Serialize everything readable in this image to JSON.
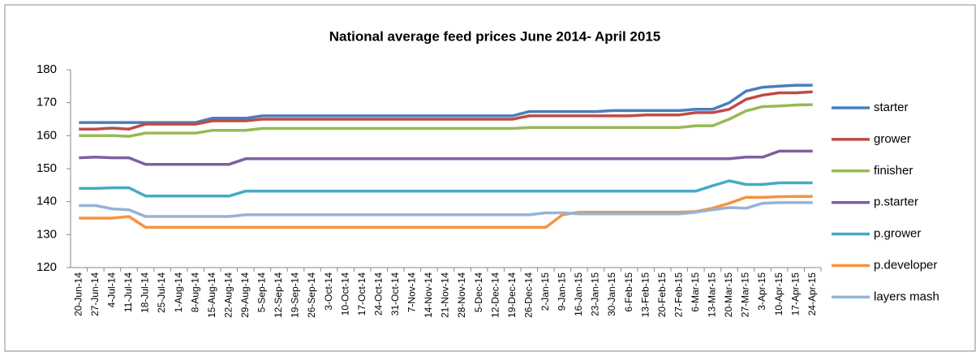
{
  "chart_data": {
    "type": "line",
    "title": "National average feed prices June 2014- April 2015",
    "categories": [
      "20-Jun-14",
      "27-Jun-14",
      "4-Jul-14",
      "11-Jul-14",
      "18-Jul-14",
      "25-Jul-14",
      "1-Aug-14",
      "8-Aug-14",
      "15-Aug-14",
      "22-Aug-14",
      "29-Aug-14",
      "5-Sep-14",
      "12-Sep-14",
      "19-Sep-14",
      "26-Sep-14",
      "3-Oct-14",
      "10-Oct-14",
      "17-Oct-14",
      "24-Oct-14",
      "31-Oct-14",
      "7-Nov-14",
      "14-Nov-14",
      "21-Nov-14",
      "28-Nov-14",
      "5-Dec-14",
      "12-Dec-14",
      "19-Dec-14",
      "26-Dec-14",
      "2-Jan-15",
      "9-Jan-15",
      "16-Jan-15",
      "23-Jan-15",
      "30-Jan-15",
      "6-Feb-15",
      "13-Feb-15",
      "20-Feb-15",
      "27-Feb-15",
      "6-Mar-15",
      "13-Mar-15",
      "20-Mar-15",
      "27-Mar-15",
      "3-Apr-15",
      "10-Apr-15",
      "17-Apr-15",
      "24-Apr-15"
    ],
    "series": [
      {
        "name": "starter",
        "color": "#4a7ebb",
        "values": [
          164,
          164,
          164,
          164,
          164,
          164,
          164,
          164,
          165.3,
          165.3,
          165.3,
          166,
          166,
          166,
          166,
          166,
          166,
          166,
          166,
          166,
          166,
          166,
          166,
          166,
          166,
          166,
          166,
          167.3,
          167.3,
          167.3,
          167.3,
          167.3,
          167.6,
          167.6,
          167.6,
          167.6,
          167.6,
          168,
          168,
          170,
          173.5,
          174.7,
          175,
          175.3,
          175.3
        ]
      },
      {
        "name": "grower",
        "color": "#be4b48",
        "values": [
          162,
          162,
          162.3,
          162,
          163.5,
          163.5,
          163.5,
          163.5,
          164.5,
          164.5,
          164.5,
          165,
          165,
          165,
          165,
          165,
          165,
          165,
          165,
          165,
          165,
          165,
          165,
          165,
          165,
          165,
          165,
          166,
          166,
          166,
          166,
          166,
          166,
          166,
          166.3,
          166.3,
          166.3,
          167,
          167,
          168,
          171,
          172.3,
          173,
          173,
          173.3
        ]
      },
      {
        "name": "finisher",
        "color": "#98b954",
        "values": [
          160,
          160,
          160,
          159.8,
          160.8,
          160.8,
          160.8,
          160.8,
          161.6,
          161.6,
          161.6,
          162.2,
          162.2,
          162.2,
          162.2,
          162.2,
          162.2,
          162.2,
          162.2,
          162.2,
          162.2,
          162.2,
          162.2,
          162.2,
          162.2,
          162.2,
          162.2,
          162.5,
          162.5,
          162.5,
          162.5,
          162.5,
          162.5,
          162.5,
          162.5,
          162.5,
          162.5,
          163,
          163,
          165,
          167.5,
          168.8,
          169,
          169.3,
          169.4
        ]
      },
      {
        "name": "p.starter",
        "color": "#7d60a0",
        "values": [
          153.3,
          153.5,
          153.3,
          153.3,
          151.3,
          151.3,
          151.3,
          151.3,
          151.3,
          151.3,
          153,
          153,
          153,
          153,
          153,
          153,
          153,
          153,
          153,
          153,
          153,
          153,
          153,
          153,
          153,
          153,
          153,
          153,
          153,
          153,
          153,
          153,
          153,
          153,
          153,
          153,
          153,
          153,
          153,
          153,
          153.5,
          153.5,
          155.3,
          155.3,
          155.3
        ]
      },
      {
        "name": "p.grower",
        "color": "#46aac5",
        "values": [
          144,
          144,
          144.2,
          144.2,
          141.7,
          141.7,
          141.7,
          141.7,
          141.7,
          141.7,
          143.2,
          143.2,
          143.2,
          143.2,
          143.2,
          143.2,
          143.2,
          143.2,
          143.2,
          143.2,
          143.2,
          143.2,
          143.2,
          143.2,
          143.2,
          143.2,
          143.2,
          143.2,
          143.2,
          143.2,
          143.2,
          143.2,
          143.2,
          143.2,
          143.2,
          143.2,
          143.2,
          143.2,
          144.8,
          146.3,
          145.2,
          145.2,
          145.7,
          145.7,
          145.7
        ]
      },
      {
        "name": "p.developer",
        "color": "#f69240",
        "values": [
          135,
          135,
          135,
          135.5,
          132.2,
          132.2,
          132.2,
          132.2,
          132.2,
          132.2,
          132.2,
          132.2,
          132.2,
          132.2,
          132.2,
          132.2,
          132.2,
          132.2,
          132.2,
          132.2,
          132.2,
          132.2,
          132.2,
          132.2,
          132.2,
          132.2,
          132.2,
          132.2,
          132.2,
          136,
          136.8,
          136.8,
          136.8,
          136.8,
          136.8,
          136.8,
          136.8,
          137,
          138,
          139.5,
          141.3,
          141.3,
          141.5,
          141.6,
          141.6
        ]
      },
      {
        "name": "layers mash",
        "color": "#95b3d7",
        "values": [
          138.8,
          138.8,
          137.8,
          137.5,
          135.5,
          135.5,
          135.5,
          135.5,
          135.5,
          135.5,
          136,
          136,
          136,
          136,
          136,
          136,
          136,
          136,
          136,
          136,
          136,
          136,
          136,
          136,
          136,
          136,
          136,
          136,
          136.6,
          136.6,
          136.3,
          136.3,
          136.3,
          136.3,
          136.3,
          136.3,
          136.3,
          136.8,
          137.5,
          138.2,
          138,
          139.5,
          139.7,
          139.7,
          139.7
        ]
      }
    ],
    "ylim": [
      120,
      180
    ],
    "yticks": [
      120,
      130,
      140,
      150,
      160,
      170,
      180
    ],
    "grid": false,
    "legend": "right"
  }
}
